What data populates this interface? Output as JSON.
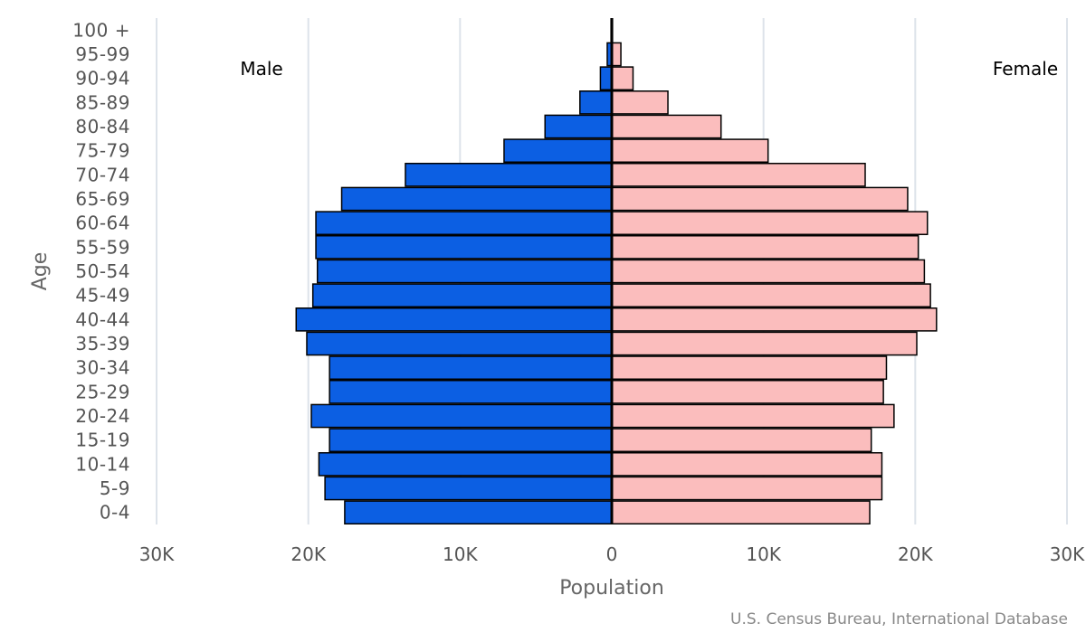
{
  "chart_data": {
    "type": "bar",
    "orientation": "horizontal-population-pyramid",
    "categories": [
      "100 +",
      "95-99",
      "90-94",
      "85-89",
      "80-84",
      "75-79",
      "70-74",
      "65-69",
      "60-64",
      "55-59",
      "50-54",
      "45-49",
      "40-44",
      "35-39",
      "30-34",
      "25-29",
      "20-24",
      "15-19",
      "10-14",
      "5-9",
      "0-4"
    ],
    "series": [
      {
        "name": "Male",
        "color": "#0c5fe3",
        "values": [
          50,
          300,
          750,
          2100,
          4400,
          7100,
          13600,
          17800,
          19500,
          19500,
          19400,
          19700,
          20800,
          20100,
          18600,
          18600,
          19800,
          18600,
          19300,
          18900,
          17600
        ]
      },
      {
        "name": "Female",
        "color": "#fbbdbd",
        "values": [
          50,
          600,
          1400,
          3700,
          7200,
          10300,
          16700,
          19500,
          20800,
          20200,
          20600,
          21000,
          21400,
          20100,
          18100,
          17900,
          18600,
          17100,
          17800,
          17800,
          17000
        ]
      }
    ],
    "xticks": [
      "30K",
      "20K",
      "10K",
      "0",
      "10K",
      "20K",
      "30K"
    ],
    "xlim": [
      -30000,
      30000
    ],
    "xlabel": "Population",
    "ylabel": "Age",
    "male_label": "Male",
    "female_label": "Female",
    "credit": "U.S. Census Bureau, International Database"
  }
}
